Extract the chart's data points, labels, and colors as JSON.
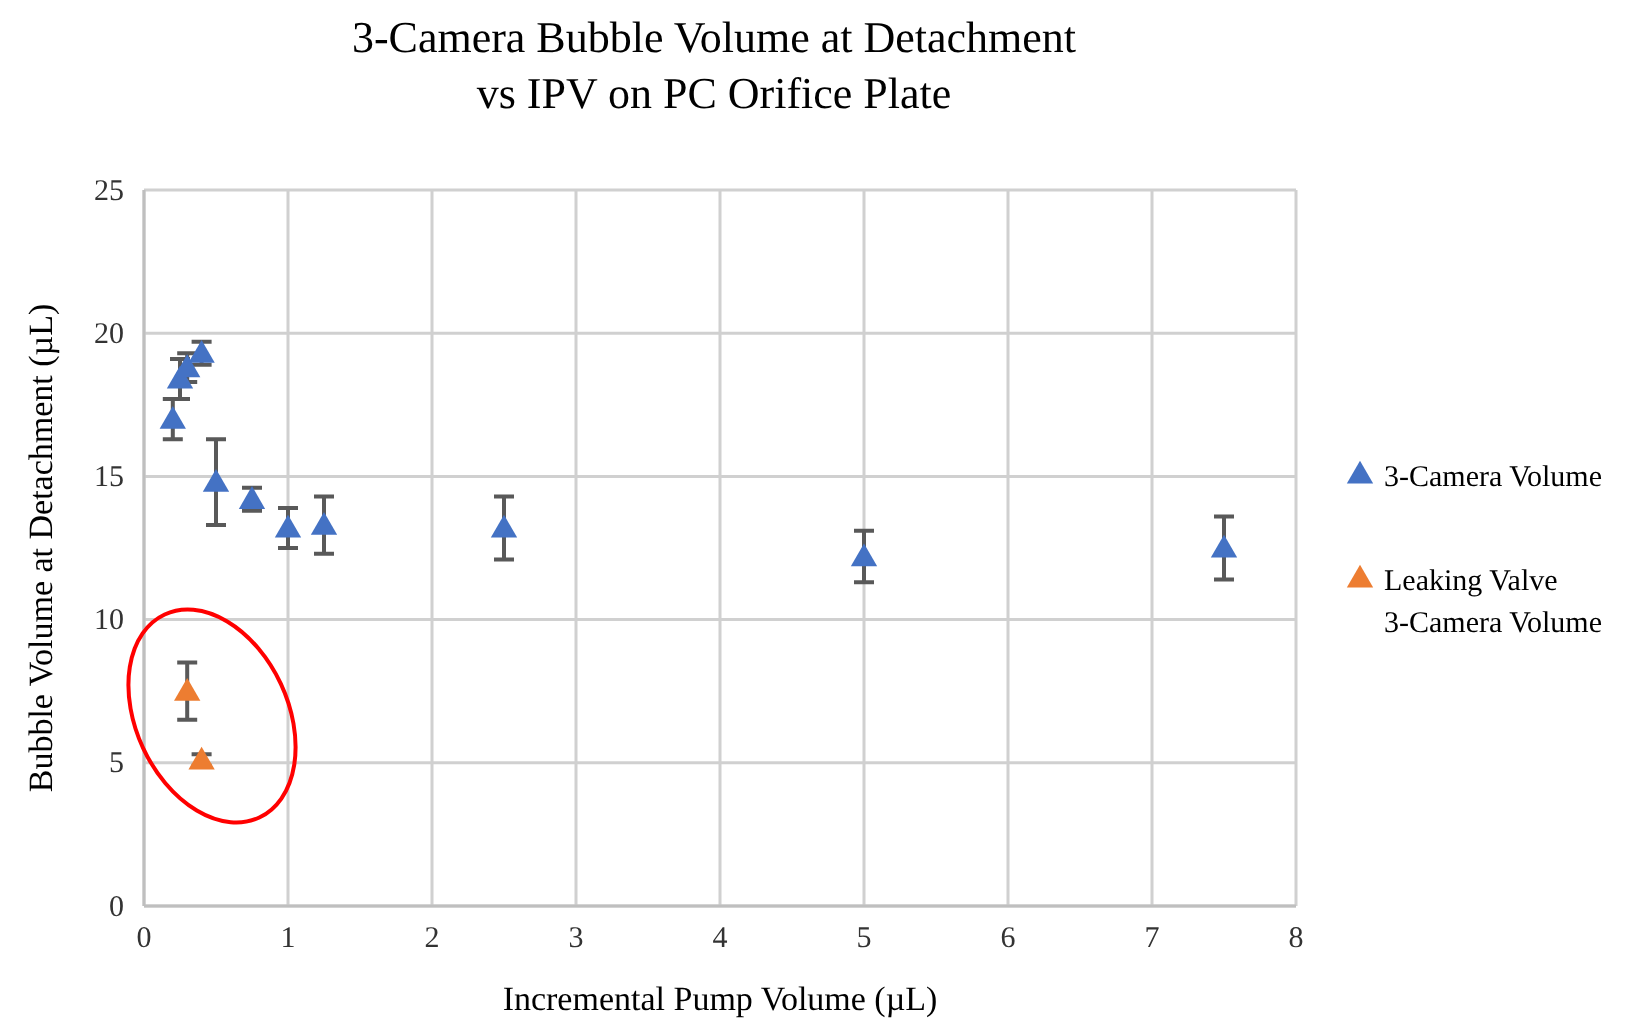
{
  "chart_data": {
    "type": "scatter",
    "title": "3-Camera Bubble Volume at Detachment vs IPV on PC Orifice Plate",
    "xlabel": "Incremental Pump Volume (µL)",
    "ylabel": "Bubble Volume at Detachment (µL)",
    "xlim": [
      0,
      8
    ],
    "xticks": [
      0,
      1,
      2,
      3,
      4,
      5,
      6,
      7,
      8
    ],
    "ylim": [
      0,
      25
    ],
    "yticks": [
      0,
      5,
      10,
      15,
      20,
      25
    ],
    "grid": true,
    "legend": "right",
    "marker": "triangle",
    "series": [
      {
        "name": "3-Camera Volume",
        "color": "#4472c4",
        "x": [
          0.2,
          0.25,
          0.3,
          0.4,
          0.5,
          0.75,
          1,
          1.25,
          2.5,
          5,
          7.5
        ],
        "values": [
          17.0,
          18.4,
          18.8,
          19.3,
          14.8,
          14.2,
          13.2,
          13.3,
          13.2,
          12.2,
          12.5
        ],
        "errors": [
          0.7,
          0.7,
          0.5,
          0.4,
          1.5,
          0.4,
          0.7,
          1.0,
          1.1,
          0.9,
          1.1
        ]
      },
      {
        "name": "Leaking Valve 3-Camera Volume",
        "color": "#ed7d31",
        "x": [
          0.3,
          0.4
        ],
        "values": [
          7.5,
          5.1
        ],
        "errors": [
          1.0,
          0.2
        ]
      }
    ]
  }
}
